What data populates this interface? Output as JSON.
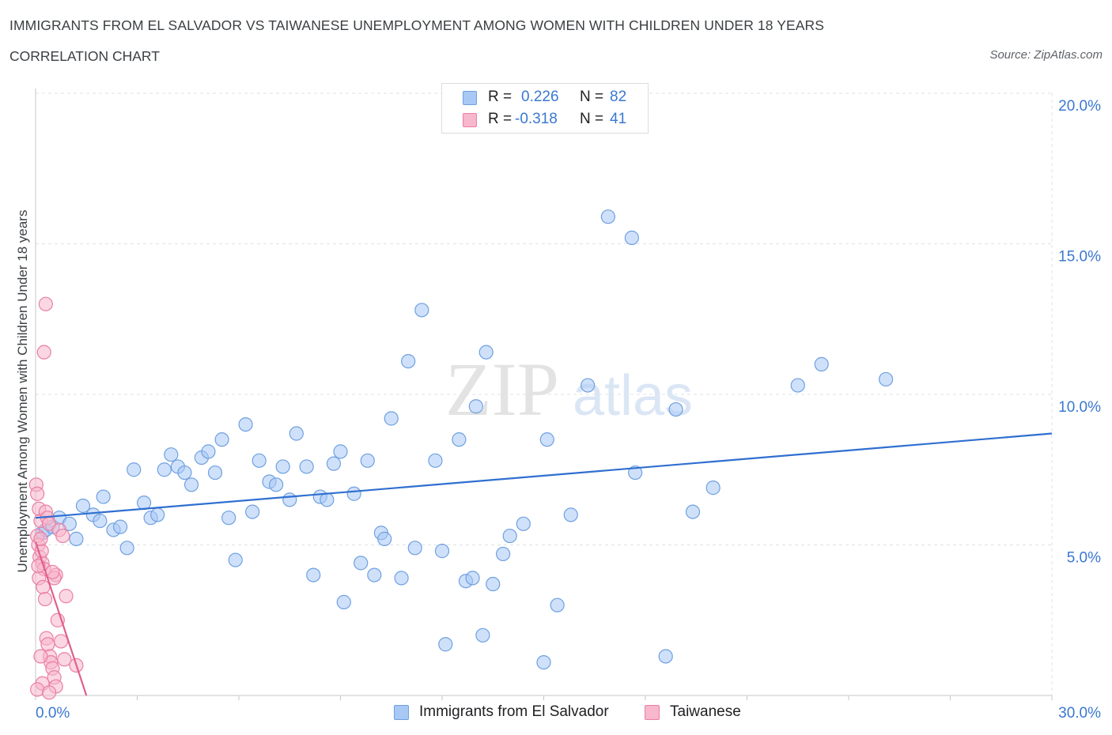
{
  "title": "IMMIGRANTS FROM EL SALVADOR VS TAIWANESE UNEMPLOYMENT AMONG WOMEN WITH CHILDREN UNDER 18 YEARS",
  "subtitle": "CORRELATION CHART",
  "source": "Source: ZipAtlas.com",
  "watermark": {
    "zip": "ZIP",
    "atlas": "atlas"
  },
  "legend": {
    "r_label": "R =",
    "n_label": "N =",
    "entries": [
      {
        "name": "Immigrants from El Salvador",
        "r": "0.226",
        "n": "82",
        "color": "#a8c8f5",
        "stroke": "#6fa0e0"
      },
      {
        "name": "Taiwanese",
        "r": "-0.318",
        "n": "41",
        "color": "#f7b7cc",
        "stroke": "#ea7fa3"
      }
    ]
  },
  "chart_data": {
    "type": "scatter",
    "title": "IMMIGRANTS FROM EL SALVADOR VS TAIWANESE UNEMPLOYMENT AMONG WOMEN WITH CHILDREN UNDER 18 YEARS",
    "xlabel": "",
    "ylabel": "Unemployment Among Women with Children Under 18 years",
    "xlim": [
      0,
      30
    ],
    "ylim": [
      0,
      20
    ],
    "x_tick_labels": [
      {
        "value": 0,
        "label": "0.0%"
      },
      {
        "value": 30,
        "label": "30.0%"
      }
    ],
    "y_tick_labels": [
      {
        "value": 5,
        "label": "5.0%"
      },
      {
        "value": 10,
        "label": "10.0%"
      },
      {
        "value": 15,
        "label": "15.0%"
      },
      {
        "value": 20,
        "label": "20.0%"
      }
    ],
    "grid": true,
    "series": [
      {
        "name": "Immigrants from El Salvador",
        "color": "#a8c8f5",
        "stroke": "#6fa0e0",
        "trend": {
          "x": [
            0,
            30
          ],
          "y": [
            5.9,
            8.7
          ],
          "color": "#2f6fd0"
        },
        "points": [
          [
            0.2,
            5.4
          ],
          [
            0.3,
            5.5
          ],
          [
            0.5,
            5.6
          ],
          [
            0.7,
            5.9
          ],
          [
            1.0,
            5.7
          ],
          [
            1.2,
            5.2
          ],
          [
            1.4,
            6.3
          ],
          [
            1.7,
            6.0
          ],
          [
            1.9,
            5.8
          ],
          [
            2.0,
            6.6
          ],
          [
            2.3,
            5.5
          ],
          [
            2.5,
            5.6
          ],
          [
            2.7,
            4.9
          ],
          [
            2.9,
            7.5
          ],
          [
            3.2,
            6.4
          ],
          [
            3.4,
            5.9
          ],
          [
            3.6,
            6.0
          ],
          [
            3.8,
            7.5
          ],
          [
            4.0,
            8.0
          ],
          [
            4.2,
            7.6
          ],
          [
            4.4,
            7.4
          ],
          [
            4.6,
            7.0
          ],
          [
            4.9,
            7.9
          ],
          [
            5.1,
            8.1
          ],
          [
            5.3,
            7.4
          ],
          [
            5.5,
            8.5
          ],
          [
            5.7,
            5.9
          ],
          [
            5.9,
            4.5
          ],
          [
            6.2,
            9.0
          ],
          [
            6.4,
            6.1
          ],
          [
            6.6,
            7.8
          ],
          [
            6.9,
            7.1
          ],
          [
            7.1,
            7.0
          ],
          [
            7.3,
            7.6
          ],
          [
            7.5,
            6.5
          ],
          [
            7.7,
            8.7
          ],
          [
            8.0,
            7.6
          ],
          [
            8.2,
            4.0
          ],
          [
            8.4,
            6.6
          ],
          [
            8.6,
            6.5
          ],
          [
            8.8,
            7.7
          ],
          [
            9.0,
            8.1
          ],
          [
            9.1,
            3.1
          ],
          [
            9.4,
            6.7
          ],
          [
            9.6,
            4.4
          ],
          [
            9.8,
            7.8
          ],
          [
            10.0,
            4.0
          ],
          [
            10.2,
            5.4
          ],
          [
            10.3,
            5.2
          ],
          [
            10.5,
            9.2
          ],
          [
            10.8,
            3.9
          ],
          [
            11.0,
            11.1
          ],
          [
            11.2,
            4.9
          ],
          [
            11.4,
            12.8
          ],
          [
            11.8,
            7.8
          ],
          [
            12.0,
            4.8
          ],
          [
            12.1,
            1.7
          ],
          [
            12.5,
            8.5
          ],
          [
            12.7,
            3.8
          ],
          [
            12.9,
            3.9
          ],
          [
            13.0,
            9.6
          ],
          [
            13.2,
            2.0
          ],
          [
            13.3,
            11.4
          ],
          [
            13.5,
            3.7
          ],
          [
            13.8,
            4.7
          ],
          [
            14.0,
            5.3
          ],
          [
            14.4,
            5.7
          ],
          [
            15.0,
            1.1
          ],
          [
            15.1,
            8.5
          ],
          [
            15.4,
            3.0
          ],
          [
            15.8,
            6.0
          ],
          [
            16.3,
            10.3
          ],
          [
            16.9,
            15.9
          ],
          [
            17.6,
            15.2
          ],
          [
            17.7,
            7.4
          ],
          [
            18.6,
            1.3
          ],
          [
            18.9,
            9.5
          ],
          [
            19.4,
            6.1
          ],
          [
            20.0,
            6.9
          ],
          [
            22.5,
            10.3
          ],
          [
            23.2,
            11.0
          ],
          [
            25.1,
            10.5
          ]
        ]
      },
      {
        "name": "Taiwanese",
        "color": "#f7b7cc",
        "stroke": "#ea7fa3",
        "trend": {
          "x": [
            0,
            1.5
          ],
          "y": [
            5.1,
            0.0
          ],
          "color": "#e0608e"
        },
        "points": [
          [
            0.02,
            7.0
          ],
          [
            0.05,
            6.7
          ],
          [
            0.1,
            6.2
          ],
          [
            0.15,
            5.8
          ],
          [
            0.05,
            5.3
          ],
          [
            0.08,
            5.0
          ],
          [
            0.12,
            4.6
          ],
          [
            0.2,
            4.4
          ],
          [
            0.25,
            4.2
          ],
          [
            0.1,
            3.9
          ],
          [
            0.3,
            6.1
          ],
          [
            0.35,
            5.9
          ],
          [
            0.4,
            5.7
          ],
          [
            0.18,
            4.8
          ],
          [
            0.22,
            3.6
          ],
          [
            0.28,
            3.2
          ],
          [
            0.32,
            1.9
          ],
          [
            0.36,
            1.7
          ],
          [
            0.42,
            1.3
          ],
          [
            0.45,
            1.1
          ],
          [
            0.5,
            0.9
          ],
          [
            0.55,
            0.6
          ],
          [
            0.6,
            0.3
          ],
          [
            0.3,
            13.0
          ],
          [
            0.25,
            11.4
          ],
          [
            0.7,
            5.5
          ],
          [
            0.8,
            5.3
          ],
          [
            0.6,
            4.0
          ],
          [
            0.55,
            3.9
          ],
          [
            0.65,
            2.5
          ],
          [
            0.75,
            1.8
          ],
          [
            0.85,
            1.2
          ],
          [
            0.9,
            3.3
          ],
          [
            1.2,
            1.0
          ],
          [
            0.15,
            1.3
          ],
          [
            0.2,
            0.4
          ],
          [
            0.05,
            0.2
          ],
          [
            0.4,
            0.1
          ],
          [
            0.15,
            5.2
          ],
          [
            0.08,
            4.3
          ],
          [
            0.5,
            4.1
          ]
        ]
      }
    ]
  }
}
